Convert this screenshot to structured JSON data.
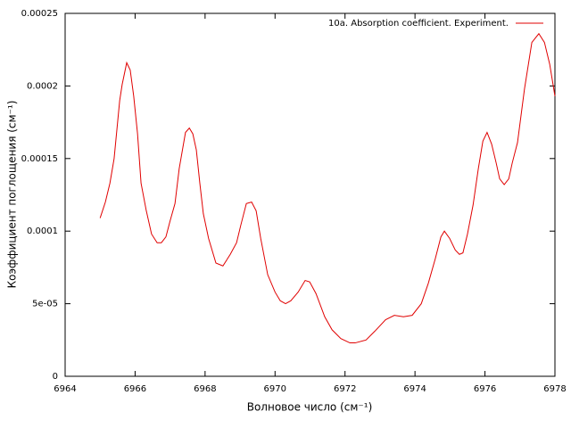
{
  "chart_data": {
    "type": "line",
    "xlabel": "Волновое число (см⁻¹)",
    "ylabel": "Коэффициент поглощения (см⁻¹)",
    "xlim": [
      6964,
      6978
    ],
    "ylim": [
      0,
      0.00025
    ],
    "xticks": [
      6964,
      6966,
      6968,
      6970,
      6972,
      6974,
      6976,
      6978
    ],
    "yticks": [
      0,
      {
        "value": 5e-05,
        "label": "5e-05"
      },
      0.0001,
      0.00015,
      0.0002,
      0.00025
    ],
    "legend": "top-right",
    "x": [
      6965.0,
      6965.15,
      6965.28,
      6965.4,
      6965.56,
      6965.63,
      6965.76,
      6965.86,
      6965.96,
      6966.07,
      6966.17,
      6966.32,
      6966.47,
      6966.63,
      6966.75,
      6966.88,
      6967.0,
      6967.14,
      6967.26,
      6967.44,
      6967.55,
      6967.65,
      6967.75,
      6967.85,
      6967.95,
      6968.1,
      6968.31,
      6968.51,
      6968.72,
      6968.9,
      6969.02,
      6969.18,
      6969.33,
      6969.46,
      6969.59,
      6969.79,
      6970.0,
      6970.15,
      6970.3,
      6970.45,
      6970.66,
      6970.86,
      6970.99,
      6971.17,
      6971.42,
      6971.63,
      6971.88,
      6972.14,
      6972.29,
      6972.6,
      6972.85,
      6973.16,
      6973.41,
      6973.67,
      6973.92,
      6974.18,
      6974.38,
      6974.58,
      6974.74,
      6974.84,
      6974.99,
      6975.15,
      6975.27,
      6975.37,
      6975.5,
      6975.66,
      6975.81,
      6975.94,
      6976.06,
      6976.19,
      6976.32,
      6976.42,
      6976.55,
      6976.68,
      6976.78,
      6976.93,
      6977.13,
      6977.34,
      6977.54,
      6977.7,
      6977.85,
      6978.0
    ],
    "series": [
      {
        "name": "10a. Absorption coefficient. Experiment.",
        "color": "#e00000",
        "values": [
          0.000109,
          0.00012,
          0.000133,
          0.00015,
          0.00019,
          0.000201,
          0.000216,
          0.000211,
          0.000193,
          0.000167,
          0.000133,
          0.000114,
          9.8e-05,
          9.2e-05,
          9.2e-05,
          9.6e-05,
          0.000107,
          0.000119,
          0.000143,
          0.000168,
          0.000171,
          0.000167,
          0.000156,
          0.000133,
          0.000112,
          9.5e-05,
          7.8e-05,
          7.6e-05,
          8.4e-05,
          9.2e-05,
          0.000104,
          0.000119,
          0.00012,
          0.000114,
          9.5e-05,
          7e-05,
          5.8e-05,
          5.2e-05,
          5e-05,
          5.2e-05,
          5.8e-05,
          6.6e-05,
          6.5e-05,
          5.7e-05,
          4.1e-05,
          3.2e-05,
          2.6e-05,
          2.3e-05,
          2.3e-05,
          2.5e-05,
          3.1e-05,
          3.9e-05,
          4.2e-05,
          4.1e-05,
          4.2e-05,
          5e-05,
          6.4e-05,
          8.1e-05,
          9.6e-05,
          0.0001,
          9.5e-05,
          8.7e-05,
          8.4e-05,
          8.5e-05,
          9.8e-05,
          0.000118,
          0.000143,
          0.000162,
          0.000168,
          0.00016,
          0.000147,
          0.000136,
          0.000132,
          0.000136,
          0.000147,
          0.000161,
          0.000198,
          0.00023,
          0.000236,
          0.00023,
          0.000215,
          0.000193
        ]
      }
    ]
  }
}
